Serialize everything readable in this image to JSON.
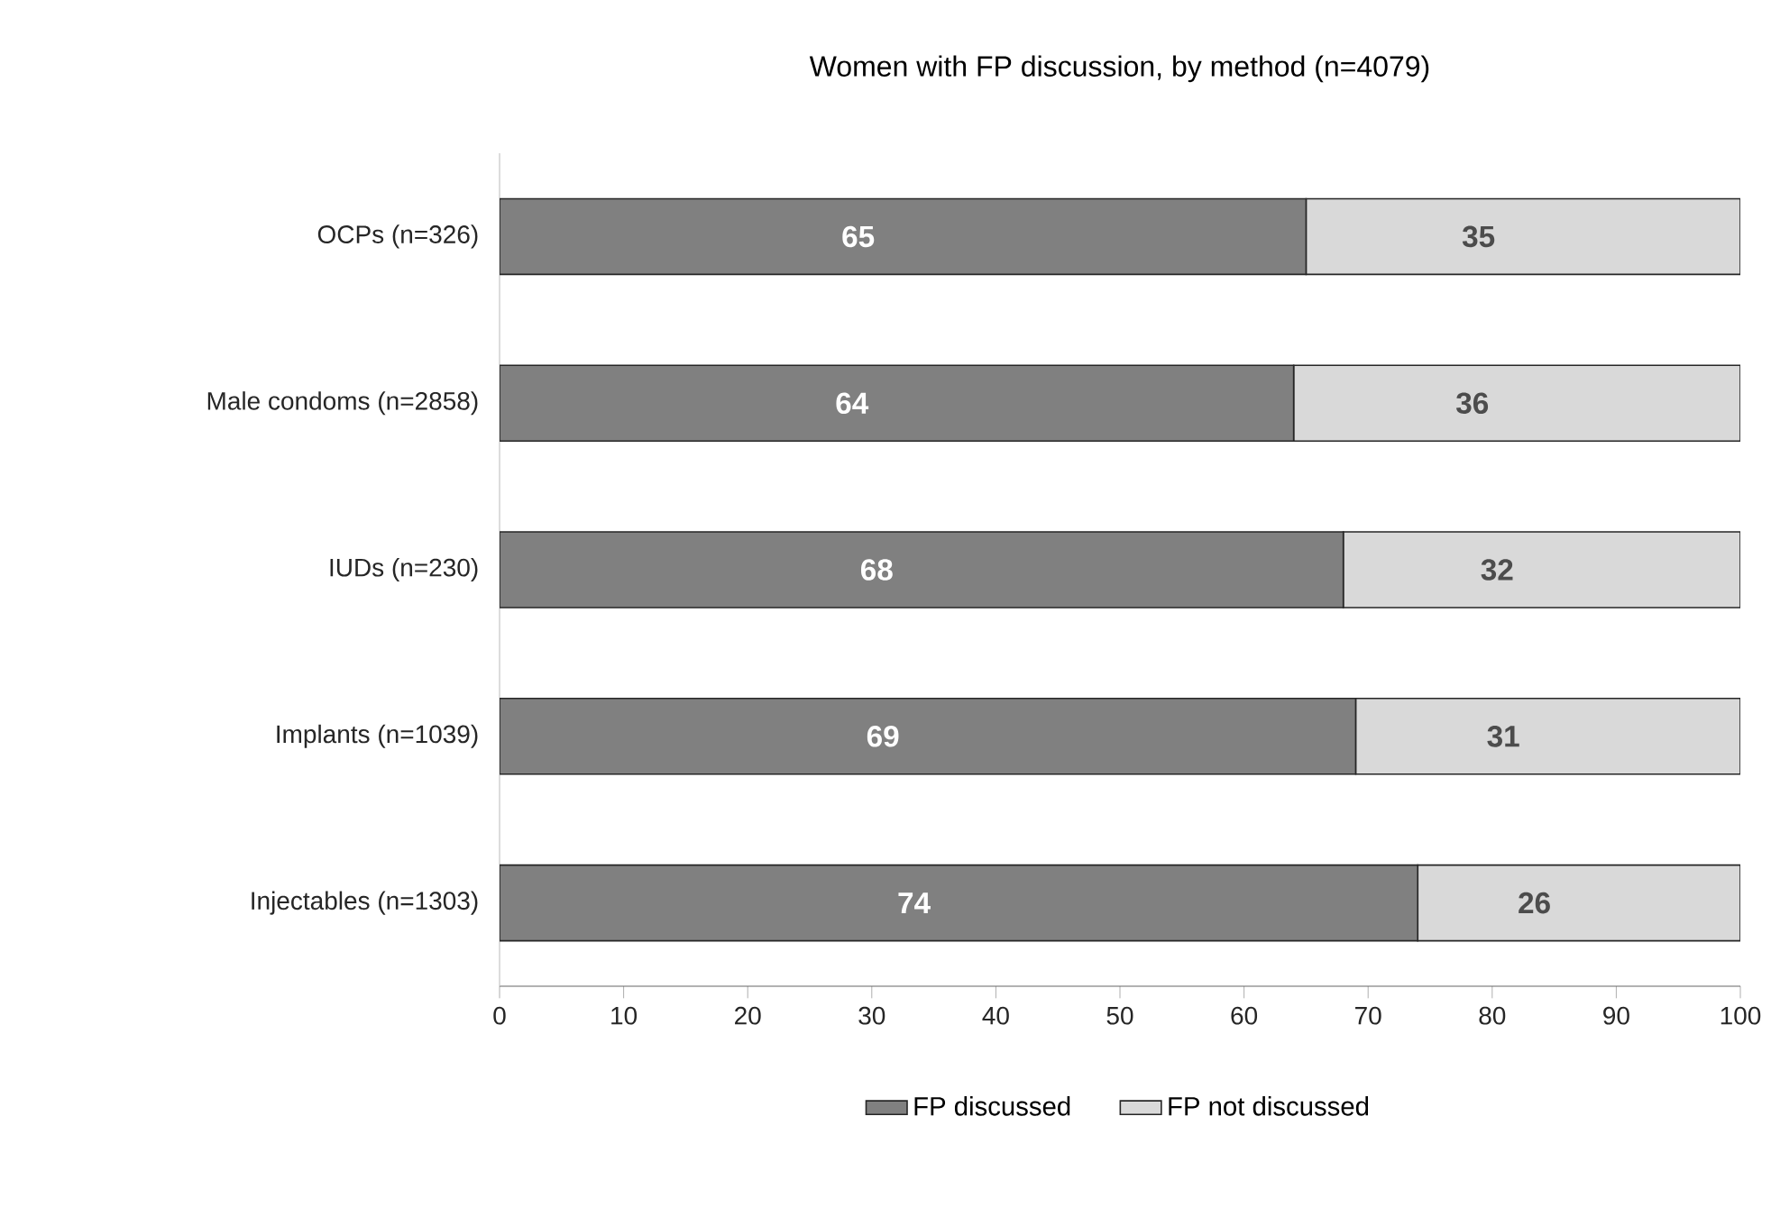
{
  "chart_data": {
    "type": "bar",
    "orientation": "horizontal",
    "stacked": true,
    "title": "Women with FP discussion, by method (n=4079)",
    "categories": [
      "OCPs (n=326)",
      "Male condoms  (n=2858)",
      "IUDs (n=230)",
      "Implants (n=1039)",
      "Injectables (n=1303)"
    ],
    "series": [
      {
        "name": "FP discussed",
        "color": "#808080",
        "values": [
          65,
          64,
          68,
          69,
          74
        ]
      },
      {
        "name": "FP not discussed",
        "color": "#d9d9d9",
        "values": [
          35,
          36,
          32,
          31,
          26
        ]
      }
    ],
    "xlim": [
      0,
      100
    ],
    "xticks": [
      0,
      10,
      20,
      30,
      40,
      50,
      60,
      70,
      80,
      90,
      100
    ],
    "data_labels": true,
    "legend": "bottom",
    "grid": false
  }
}
